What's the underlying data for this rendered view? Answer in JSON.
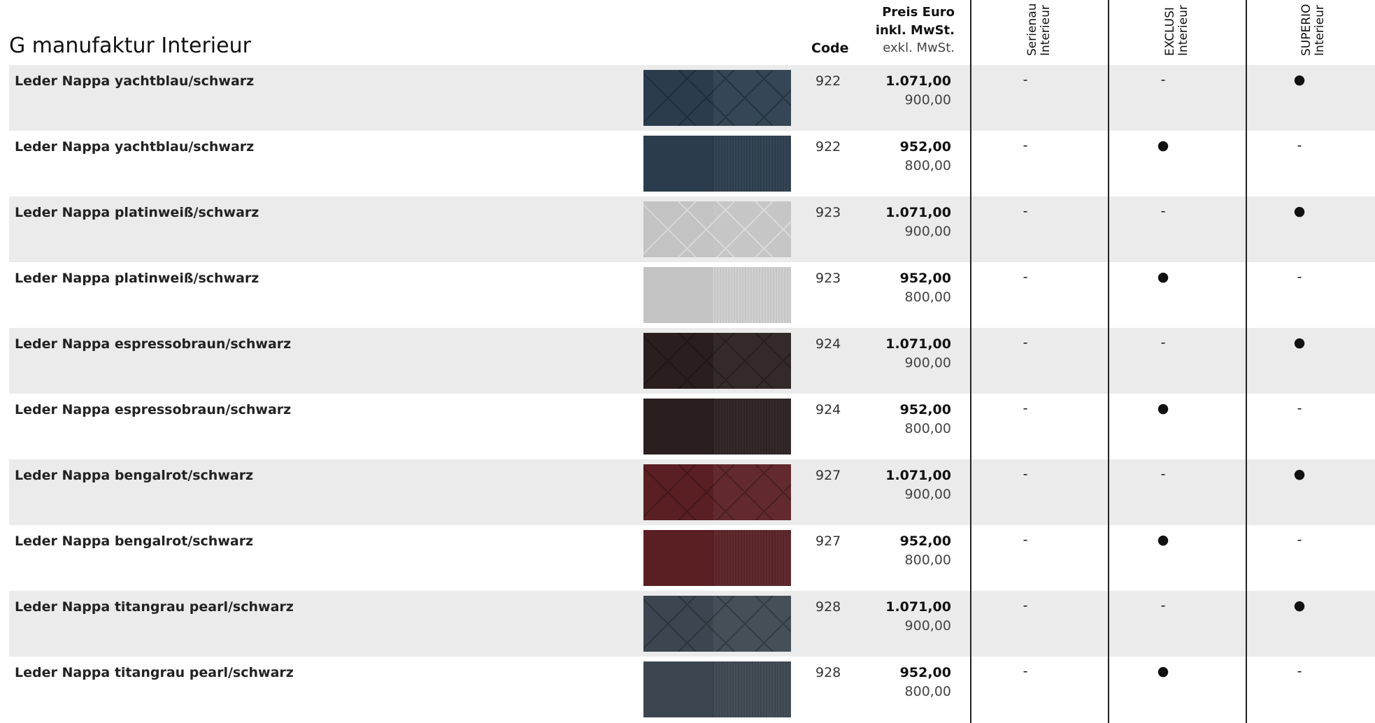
{
  "header": {
    "title": "G manufaktur Interieur",
    "code": "Code",
    "price_title": "Preis Euro",
    "price_incl": "inkl. MwSt.",
    "price_excl": "exkl. MwSt.",
    "columns": [
      {
        "line1": "Serienau",
        "line2": "Interieur"
      },
      {
        "line1": "EXCLUSI",
        "line2": "Interieur"
      },
      {
        "line1": "SUPERIO",
        "line2": "Interieur"
      }
    ]
  },
  "table": {
    "rows": [
      {
        "name": "Leder Nappa yachtblau/schwarz",
        "color": "#2b3d4d",
        "code": "922",
        "incl": "1.071,00",
        "excl": "900,00",
        "marks": [
          "-",
          "-",
          "●"
        ]
      },
      {
        "name": "Leder Nappa yachtblau/schwarz",
        "color": "#2b3d4d",
        "code": "922",
        "incl": "952,00",
        "excl": "800,00",
        "marks": [
          "-",
          "●",
          "-"
        ]
      },
      {
        "name": "Leder Nappa platinweiß/schwarz",
        "color": "#c3c3c3",
        "code": "923",
        "incl": "1.071,00",
        "excl": "900,00",
        "marks": [
          "-",
          "-",
          "●"
        ]
      },
      {
        "name": "Leder Nappa platinweiß/schwarz",
        "color": "#c3c3c3",
        "code": "923",
        "incl": "952,00",
        "excl": "800,00",
        "marks": [
          "-",
          "●",
          "-"
        ]
      },
      {
        "name": "Leder Nappa espressobraun/schwarz",
        "color": "#2a1f1e",
        "code": "924",
        "incl": "1.071,00",
        "excl": "900,00",
        "marks": [
          "-",
          "-",
          "●"
        ]
      },
      {
        "name": "Leder Nappa espressobraun/schwarz",
        "color": "#2a1f1e",
        "code": "924",
        "incl": "952,00",
        "excl": "800,00",
        "marks": [
          "-",
          "●",
          "-"
        ]
      },
      {
        "name": "Leder Nappa bengalrot/schwarz",
        "color": "#5a1f23",
        "code": "927",
        "incl": "1.071,00",
        "excl": "900,00",
        "marks": [
          "-",
          "-",
          "●"
        ]
      },
      {
        "name": "Leder Nappa bengalrot/schwarz",
        "color": "#5a1f23",
        "code": "927",
        "incl": "952,00",
        "excl": "800,00",
        "marks": [
          "-",
          "●",
          "-"
        ]
      },
      {
        "name": "Leder Nappa titangrau pearl/schwarz",
        "color": "#3c4650",
        "code": "928",
        "incl": "1.071,00",
        "excl": "900,00",
        "marks": [
          "-",
          "-",
          "●"
        ]
      },
      {
        "name": "Leder Nappa titangrau pearl/schwarz",
        "color": "#3c4650",
        "code": "928",
        "incl": "952,00",
        "excl": "800,00",
        "marks": [
          "-",
          "●",
          "-"
        ]
      }
    ]
  }
}
